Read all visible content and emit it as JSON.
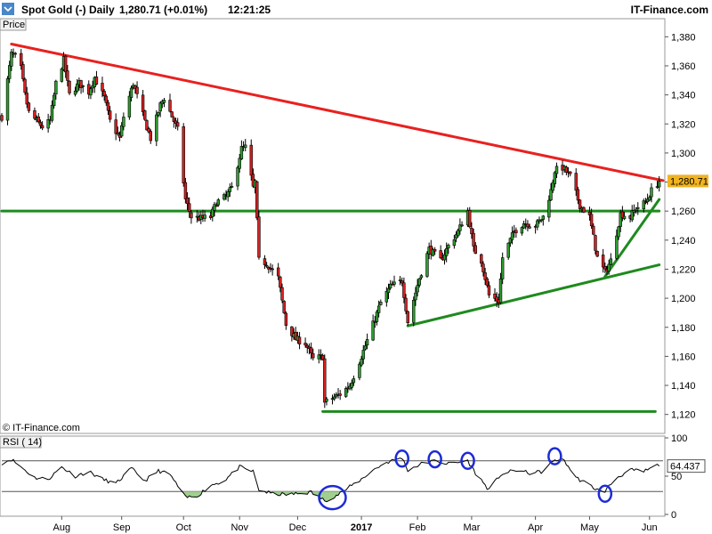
{
  "header": {
    "instrument": "Spot Gold (-)",
    "period": "Daily",
    "quote": "1,280.71 (+0.01%)",
    "time": "12:21:25",
    "brand": "IT-Finance.com"
  },
  "chart_data": [
    {
      "type": "candlestick",
      "panel_label": "Price",
      "watermark": "© IT-Finance.com",
      "ylim": [
        1110,
        1390
      ],
      "y_ticks": [
        1380,
        1360,
        1340,
        1320,
        1300,
        1280,
        1260,
        1240,
        1220,
        1200,
        1180,
        1160,
        1140,
        1120
      ],
      "y_tick_labels": [
        "1,380",
        "1,360",
        "1,340",
        "1,320",
        "1,300",
        "1,280",
        "1,260",
        "1,240",
        "1,220",
        "1,200",
        "1,180",
        "1,160",
        "1,140",
        "1,120"
      ],
      "x_labels": [
        "Aug",
        "Sep",
        "Oct",
        "Nov",
        "Dec",
        "2017",
        "Feb",
        "Mar",
        "Apr",
        "May",
        "Jun"
      ],
      "x_label_dates": [
        "2016-08-01",
        "2016-09-01",
        "2016-10-03",
        "2016-11-01",
        "2016-12-01",
        "2017-01-03",
        "2017-02-01",
        "2017-03-01",
        "2017-04-03",
        "2017-05-01",
        "2017-06-01"
      ],
      "x_range": [
        "2016-07-01",
        "2017-06-08"
      ],
      "last_price": 1280.71,
      "last_price_label": "1,280.71",
      "close_path": [
        [
          "2016-07-01",
          1325
        ],
        [
          "2016-07-04",
          1350
        ],
        [
          "2016-07-06",
          1368
        ],
        [
          "2016-07-08",
          1366
        ],
        [
          "2016-07-11",
          1358
        ],
        [
          "2016-07-13",
          1340
        ],
        [
          "2016-07-15",
          1328
        ],
        [
          "2016-07-19",
          1322
        ],
        [
          "2016-07-22",
          1318
        ],
        [
          "2016-07-26",
          1322
        ],
        [
          "2016-07-29",
          1348
        ],
        [
          "2016-08-02",
          1364
        ],
        [
          "2016-08-05",
          1340
        ],
        [
          "2016-08-10",
          1348
        ],
        [
          "2016-08-15",
          1342
        ],
        [
          "2016-08-18",
          1352
        ],
        [
          "2016-08-23",
          1338
        ],
        [
          "2016-08-26",
          1322
        ],
        [
          "2016-08-31",
          1310
        ],
        [
          "2016-09-02",
          1325
        ],
        [
          "2016-09-07",
          1348
        ],
        [
          "2016-09-12",
          1326
        ],
        [
          "2016-09-16",
          1310
        ],
        [
          "2016-09-21",
          1333
        ],
        [
          "2016-09-23",
          1338
        ],
        [
          "2016-09-28",
          1322
        ],
        [
          "2016-09-30",
          1316
        ],
        [
          "2016-10-04",
          1268
        ],
        [
          "2016-10-07",
          1256
        ],
        [
          "2016-10-12",
          1255
        ],
        [
          "2016-10-17",
          1256
        ],
        [
          "2016-10-20",
          1266
        ],
        [
          "2016-10-25",
          1270
        ],
        [
          "2016-10-28",
          1276
        ],
        [
          "2016-11-02",
          1303
        ],
        [
          "2016-11-04",
          1304
        ],
        [
          "2016-11-08",
          1276
        ],
        [
          "2016-11-09",
          1280
        ],
        [
          "2016-11-11",
          1226
        ],
        [
          "2016-11-15",
          1224
        ],
        [
          "2016-11-21",
          1214
        ],
        [
          "2016-11-25",
          1182
        ],
        [
          "2016-11-30",
          1172
        ],
        [
          "2016-12-05",
          1169
        ],
        [
          "2016-12-09",
          1158
        ],
        [
          "2016-12-14",
          1160
        ],
        [
          "2016-12-15",
          1128
        ],
        [
          "2016-12-20",
          1132
        ],
        [
          "2016-12-23",
          1134
        ],
        [
          "2016-12-28",
          1140
        ],
        [
          "2017-01-03",
          1160
        ],
        [
          "2017-01-09",
          1182
        ],
        [
          "2017-01-13",
          1197
        ],
        [
          "2017-01-18",
          1208
        ],
        [
          "2017-01-24",
          1212
        ],
        [
          "2017-01-27",
          1184
        ],
        [
          "2017-02-02",
          1214
        ],
        [
          "2017-02-07",
          1234
        ],
        [
          "2017-02-13",
          1226
        ],
        [
          "2017-02-17",
          1236
        ],
        [
          "2017-02-22",
          1246
        ],
        [
          "2017-02-27",
          1260
        ],
        [
          "2017-03-02",
          1234
        ],
        [
          "2017-03-06",
          1226
        ],
        [
          "2017-03-10",
          1202
        ],
        [
          "2017-03-15",
          1198
        ],
        [
          "2017-03-17",
          1228
        ],
        [
          "2017-03-23",
          1246
        ],
        [
          "2017-03-28",
          1252
        ],
        [
          "2017-04-03",
          1250
        ],
        [
          "2017-04-07",
          1256
        ],
        [
          "2017-04-11",
          1274
        ],
        [
          "2017-04-13",
          1288
        ],
        [
          "2017-04-17",
          1290
        ],
        [
          "2017-04-21",
          1284
        ],
        [
          "2017-04-26",
          1264
        ],
        [
          "2017-05-01",
          1256
        ],
        [
          "2017-05-05",
          1228
        ],
        [
          "2017-05-09",
          1218
        ],
        [
          "2017-05-12",
          1226
        ],
        [
          "2017-05-17",
          1258
        ],
        [
          "2017-05-22",
          1256
        ],
        [
          "2017-05-25",
          1262
        ],
        [
          "2017-05-30",
          1266
        ],
        [
          "2017-06-02",
          1274
        ],
        [
          "2017-06-06",
          1280.71
        ]
      ],
      "trendlines": [
        {
          "color": "#e8211f",
          "points": [
            [
              "2016-07-06",
              1375
            ],
            [
              "2017-06-08",
              1281
            ]
          ]
        },
        {
          "color": "#1e8a1e",
          "points": [
            [
              "2016-07-01",
              1260
            ],
            [
              "2017-06-06",
              1260
            ]
          ]
        },
        {
          "color": "#1e8a1e",
          "points": [
            [
              "2016-12-14",
              1122
            ],
            [
              "2017-06-04",
              1122
            ]
          ]
        },
        {
          "color": "#1e8a1e",
          "points": [
            [
              "2017-01-27",
              1181
            ],
            [
              "2017-06-06",
              1223
            ]
          ]
        },
        {
          "color": "#1e8a1e",
          "points": [
            [
              "2017-05-09",
              1215
            ],
            [
              "2017-06-06",
              1268
            ]
          ]
        }
      ]
    },
    {
      "type": "line",
      "panel_label": "RSI ( 14)",
      "ylim": [
        0,
        100
      ],
      "y_ticks": [
        100,
        50,
        0
      ],
      "y_tick_labels": [
        "100",
        "50",
        "0"
      ],
      "guide_levels": [
        70,
        30
      ],
      "last_value_label": "64.437",
      "series": [
        {
          "values": [
            [
              "2016-07-01",
              67
            ],
            [
              "2016-07-06",
              72
            ],
            [
              "2016-07-11",
              62
            ],
            [
              "2016-07-18",
              48
            ],
            [
              "2016-07-25",
              46
            ],
            [
              "2016-08-01",
              62
            ],
            [
              "2016-08-08",
              50
            ],
            [
              "2016-08-15",
              56
            ],
            [
              "2016-08-22",
              46
            ],
            [
              "2016-08-29",
              40
            ],
            [
              "2016-09-06",
              60
            ],
            [
              "2016-09-13",
              44
            ],
            [
              "2016-09-20",
              57
            ],
            [
              "2016-09-26",
              52
            ],
            [
              "2016-10-04",
              22
            ],
            [
              "2016-10-10",
              24
            ],
            [
              "2016-10-17",
              38
            ],
            [
              "2016-10-24",
              44
            ],
            [
              "2016-11-01",
              62
            ],
            [
              "2016-11-08",
              56
            ],
            [
              "2016-11-11",
              32
            ],
            [
              "2016-11-18",
              27
            ],
            [
              "2016-11-25",
              26
            ],
            [
              "2016-12-01",
              27
            ],
            [
              "2016-12-08",
              29
            ],
            [
              "2016-12-15",
              18
            ],
            [
              "2016-12-22",
              26
            ],
            [
              "2017-01-03",
              46
            ],
            [
              "2017-01-09",
              58
            ],
            [
              "2017-01-16",
              68
            ],
            [
              "2017-01-24",
              74
            ],
            [
              "2017-01-27",
              58
            ],
            [
              "2017-02-03",
              66
            ],
            [
              "2017-02-10",
              70
            ],
            [
              "2017-02-17",
              66
            ],
            [
              "2017-02-27",
              70
            ],
            [
              "2017-03-03",
              54
            ],
            [
              "2017-03-10",
              32
            ],
            [
              "2017-03-16",
              52
            ],
            [
              "2017-03-24",
              58
            ],
            [
              "2017-03-31",
              54
            ],
            [
              "2017-04-07",
              56
            ],
            [
              "2017-04-13",
              72
            ],
            [
              "2017-04-18",
              70
            ],
            [
              "2017-04-24",
              48
            ],
            [
              "2017-05-01",
              38
            ],
            [
              "2017-05-08",
              28
            ],
            [
              "2017-05-15",
              48
            ],
            [
              "2017-05-22",
              58
            ],
            [
              "2017-05-29",
              56
            ],
            [
              "2017-06-06",
              65
            ]
          ]
        }
      ],
      "highlights": [
        {
          "date": "2016-12-19",
          "value": 22
        },
        {
          "date": "2017-01-24",
          "value": 73
        },
        {
          "date": "2017-02-10",
          "value": 72
        },
        {
          "date": "2017-02-27",
          "value": 70
        },
        {
          "date": "2017-04-13",
          "value": 76
        },
        {
          "date": "2017-05-09",
          "value": 27
        }
      ]
    }
  ]
}
